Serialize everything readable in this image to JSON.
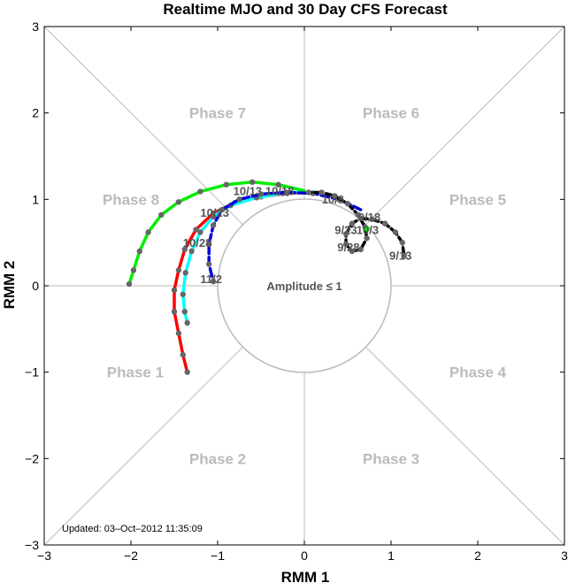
{
  "chart_data": {
    "type": "line",
    "title": "Realtime MJO and 30 Day CFS Forecast",
    "xlabel": "RMM 1",
    "ylabel": "RMM 2",
    "xlim": [
      -3,
      3
    ],
    "ylim": [
      -3,
      3
    ],
    "xticks": [
      "−3",
      "−2",
      "−1",
      "0",
      "1",
      "2",
      "3"
    ],
    "yticks": [
      "−3",
      "−2",
      "−1",
      "0",
      "1",
      "2",
      "3"
    ],
    "grid": false,
    "amplitude_label": "Amplitude ≤ 1",
    "updated": "Updated: 03–Oct–2012 11:35:09",
    "phases": [
      {
        "label": "Phase 1",
        "x": -1.95,
        "y": -1.0
      },
      {
        "label": "Phase 2",
        "x": -1.0,
        "y": -2.0
      },
      {
        "label": "Phase 3",
        "x": 1.0,
        "y": -2.0
      },
      {
        "label": "Phase 4",
        "x": 2.0,
        "y": -1.0
      },
      {
        "label": "Phase 5",
        "x": 2.0,
        "y": 1.0
      },
      {
        "label": "Phase 6",
        "x": 1.0,
        "y": 2.0
      },
      {
        "label": "Phase 7",
        "x": -1.0,
        "y": 2.0
      },
      {
        "label": "Phase 8",
        "x": -2.0,
        "y": 1.0
      }
    ],
    "series": [
      {
        "color": "#ff0000",
        "x": [
          0.0,
          -0.2,
          -0.5,
          -0.8,
          -1.05,
          -1.25,
          -1.38,
          -1.45,
          -1.5,
          -1.5,
          -1.45,
          -1.4,
          -1.35
        ],
        "y": [
          1.08,
          1.07,
          1.03,
          0.96,
          0.84,
          0.65,
          0.42,
          0.18,
          -0.05,
          -0.3,
          -0.55,
          -0.8,
          -1.0
        ]
      },
      {
        "color": "#00ffff",
        "x": [
          0.0,
          -0.25,
          -0.55,
          -0.85,
          -1.05,
          -1.2,
          -1.3,
          -1.37,
          -1.4,
          -1.38,
          -1.35
        ],
        "y": [
          1.09,
          1.07,
          1.02,
          0.93,
          0.8,
          0.62,
          0.4,
          0.15,
          -0.1,
          -0.3,
          -0.43
        ]
      },
      {
        "color": "#00ee00",
        "x": [
          0.0,
          -0.3,
          -0.6,
          -0.9,
          -1.2,
          -1.45,
          -1.65,
          -1.8,
          -1.9,
          -1.97,
          -2.02
        ],
        "y": [
          1.1,
          1.17,
          1.2,
          1.17,
          1.09,
          0.97,
          0.82,
          0.62,
          0.4,
          0.18,
          0.02
        ]
      },
      {
        "color": "#0000dd",
        "dashed": true,
        "x": [
          0.65,
          0.4,
          0.1,
          -0.2,
          -0.5,
          -0.75,
          -0.95,
          -1.05,
          -1.1,
          -1.1,
          -1.05
        ],
        "y": [
          0.88,
          1.0,
          1.07,
          1.08,
          1.06,
          1.0,
          0.88,
          0.7,
          0.48,
          0.25,
          0.05
        ]
      },
      {
        "color": "#000000",
        "dashed": true,
        "x": [
          1.15,
          1.13,
          1.05,
          0.93,
          0.78,
          0.65,
          0.55,
          0.48,
          0.48,
          0.55,
          0.65,
          0.72,
          0.7,
          0.62,
          0.5,
          0.35,
          0.2,
          0.05
        ],
        "y": [
          0.35,
          0.5,
          0.62,
          0.72,
          0.77,
          0.78,
          0.72,
          0.6,
          0.48,
          0.4,
          0.42,
          0.55,
          0.68,
          0.82,
          0.95,
          1.04,
          1.08,
          1.08
        ]
      }
    ],
    "date_labels": [
      {
        "text": "9/13",
        "x": 0.98,
        "y": 0.3
      },
      {
        "text": "9/18",
        "x": 0.62,
        "y": 0.75
      },
      {
        "text": "9/23",
        "x": 0.35,
        "y": 0.6
      },
      {
        "text": "9/28",
        "x": 0.38,
        "y": 0.4
      },
      {
        "text": "10/3",
        "x": 0.6,
        "y": 0.6
      },
      {
        "text": "10/8",
        "x": 0.2,
        "y": 0.95
      },
      {
        "text": "10/13",
        "x": -0.82,
        "y": 1.05
      },
      {
        "text": "10/18",
        "x": -0.45,
        "y": 1.05
      },
      {
        "text": "10/23",
        "x": -1.2,
        "y": 0.8
      },
      {
        "text": "10/28",
        "x": -1.4,
        "y": 0.45
      },
      {
        "text": "11/2",
        "x": -1.2,
        "y": 0.03
      }
    ]
  }
}
